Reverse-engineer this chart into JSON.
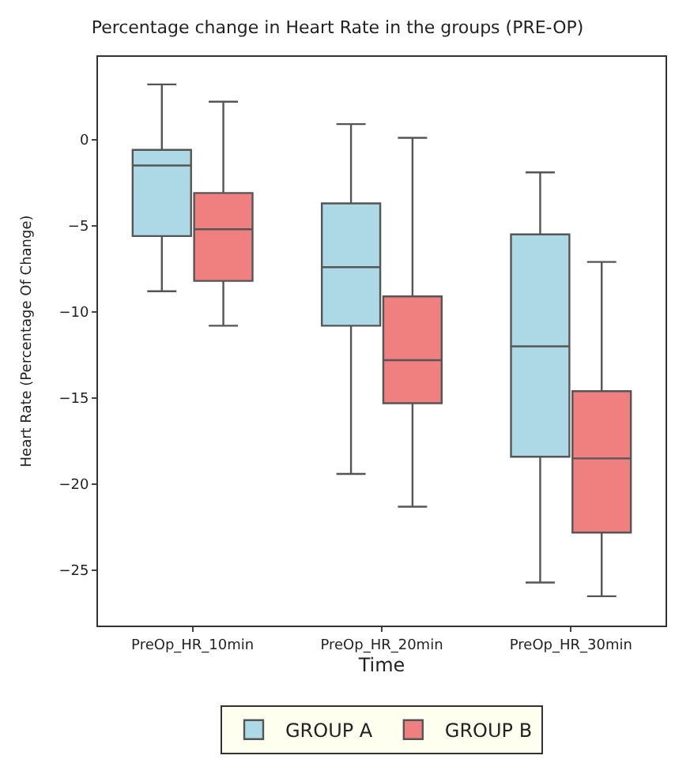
{
  "chart_data": {
    "type": "box",
    "title": "Percentage change in Heart Rate in the groups (PRE-OP)",
    "xlabel": "Time",
    "ylabel": "Heart Rate (Percentage Of Change)",
    "categories": [
      "PreOp_HR_10min",
      "PreOp_HR_20min",
      "PreOp_HR_30min"
    ],
    "series": [
      {
        "name": "GROUP A",
        "color": "#add8e6",
        "boxes": [
          {
            "low": -8.8,
            "q1": -5.6,
            "median": -1.5,
            "q3": -0.6,
            "high": 3.2
          },
          {
            "low": -19.4,
            "q1": -10.8,
            "median": -7.4,
            "q3": -3.7,
            "high": 0.9
          },
          {
            "low": -25.7,
            "q1": -18.4,
            "median": -12.0,
            "q3": -5.5,
            "high": -1.9
          }
        ]
      },
      {
        "name": "GROUP B",
        "color": "#f08080",
        "boxes": [
          {
            "low": -10.8,
            "q1": -8.2,
            "median": -5.2,
            "q3": -3.1,
            "high": 2.2
          },
          {
            "low": -21.3,
            "q1": -15.3,
            "median": -12.8,
            "q3": -9.1,
            "high": 0.1
          },
          {
            "low": -26.5,
            "q1": -22.8,
            "median": -18.5,
            "q3": -14.6,
            "high": -7.1
          }
        ]
      }
    ],
    "ylim": [
      -28.2,
      4.8
    ],
    "yticks": [
      -25,
      -20,
      -15,
      -10,
      -5,
      0
    ],
    "legend": "bottom"
  }
}
